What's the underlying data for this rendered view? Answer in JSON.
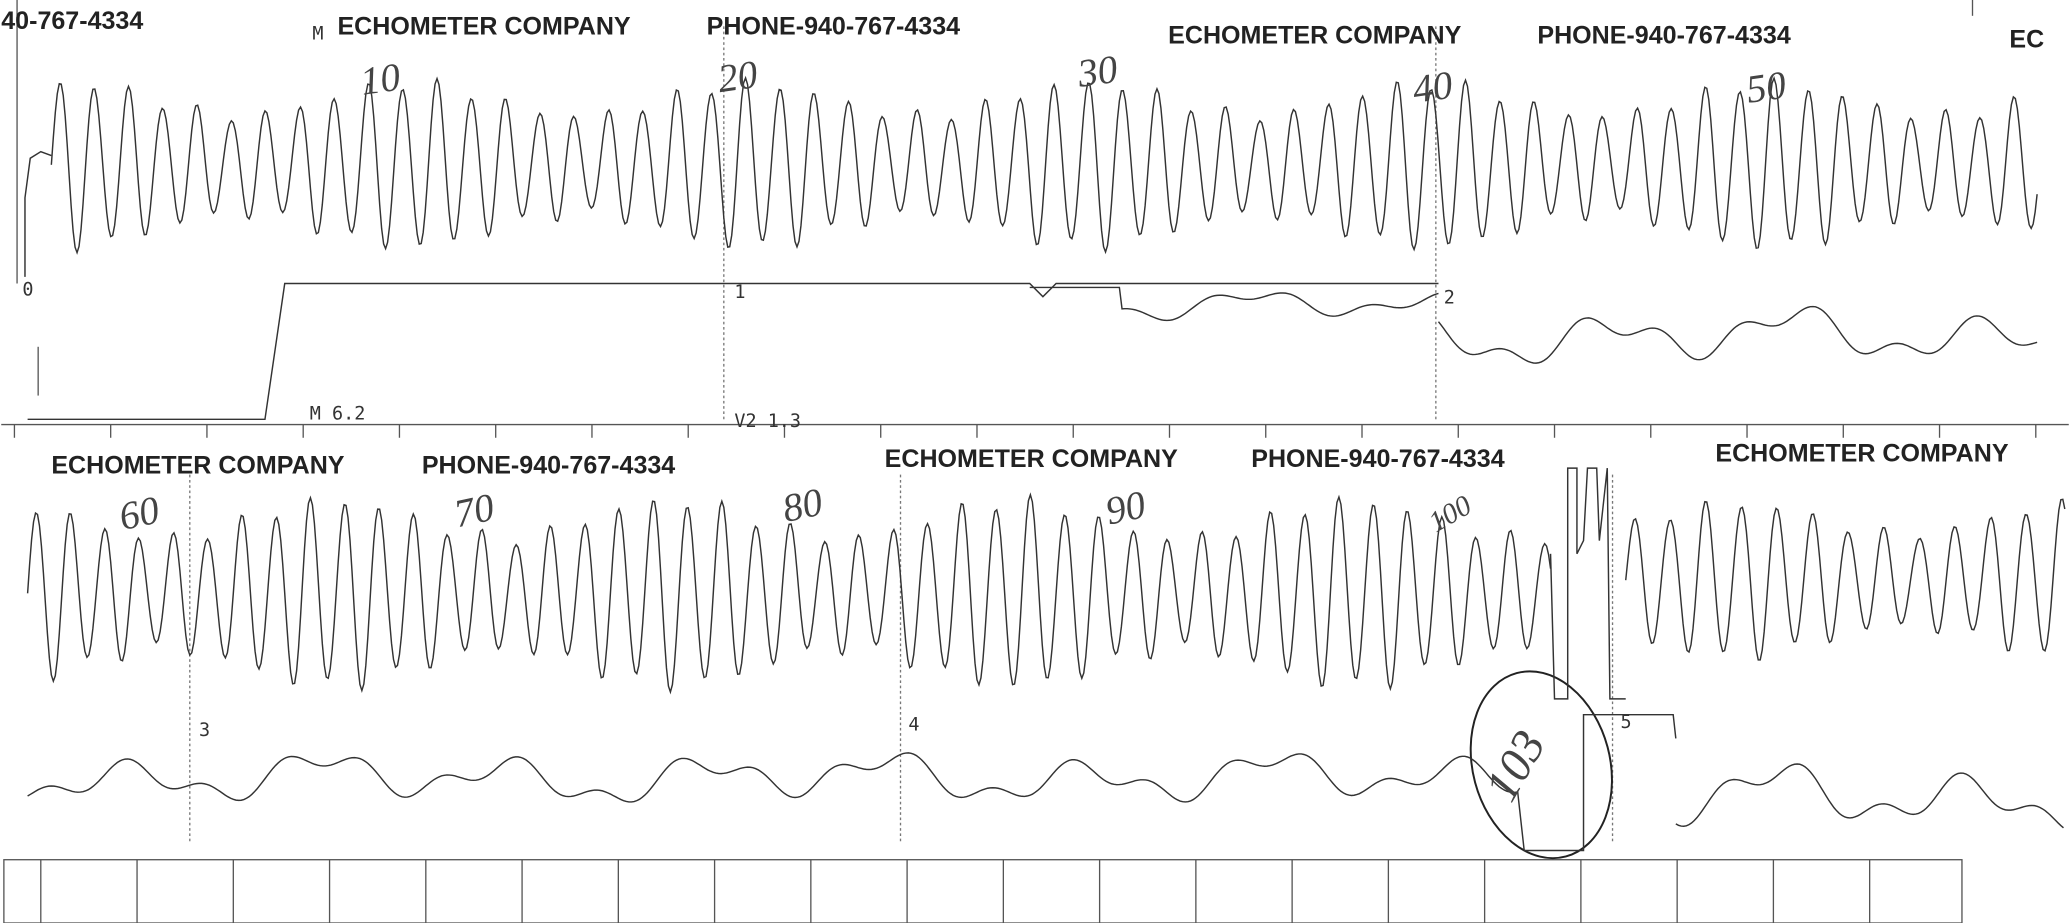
{
  "top_strip": {
    "header_left": "40-767-4334",
    "headers": [
      {
        "company": "ECHOMETER COMPANY",
        "phone": "PHONE-940-767-4334"
      },
      {
        "company": "ECHOMETER COMPANY",
        "phone": "PHONE-940-767-4334"
      }
    ],
    "header_right": "EC",
    "marker_labels": [
      "M",
      "0",
      "1",
      "2"
    ],
    "footer_labels": [
      "M  6.2",
      "V2  1.3"
    ],
    "handwritten": [
      "10",
      "20",
      "30",
      "40",
      "50"
    ]
  },
  "bottom_strip": {
    "headers": [
      {
        "company": "ECHOMETER COMPANY",
        "phone": "PHONE-940-767-4334"
      },
      {
        "company": "ECHOMETER COMPANY",
        "phone": "PHONE-940-767-4334"
      }
    ],
    "header_right": "ECHOMETER COMPANY",
    "marker_labels": [
      "3",
      "4",
      "5"
    ],
    "handwritten": [
      "60",
      "70",
      "80",
      "90",
      "100",
      "103"
    ]
  }
}
